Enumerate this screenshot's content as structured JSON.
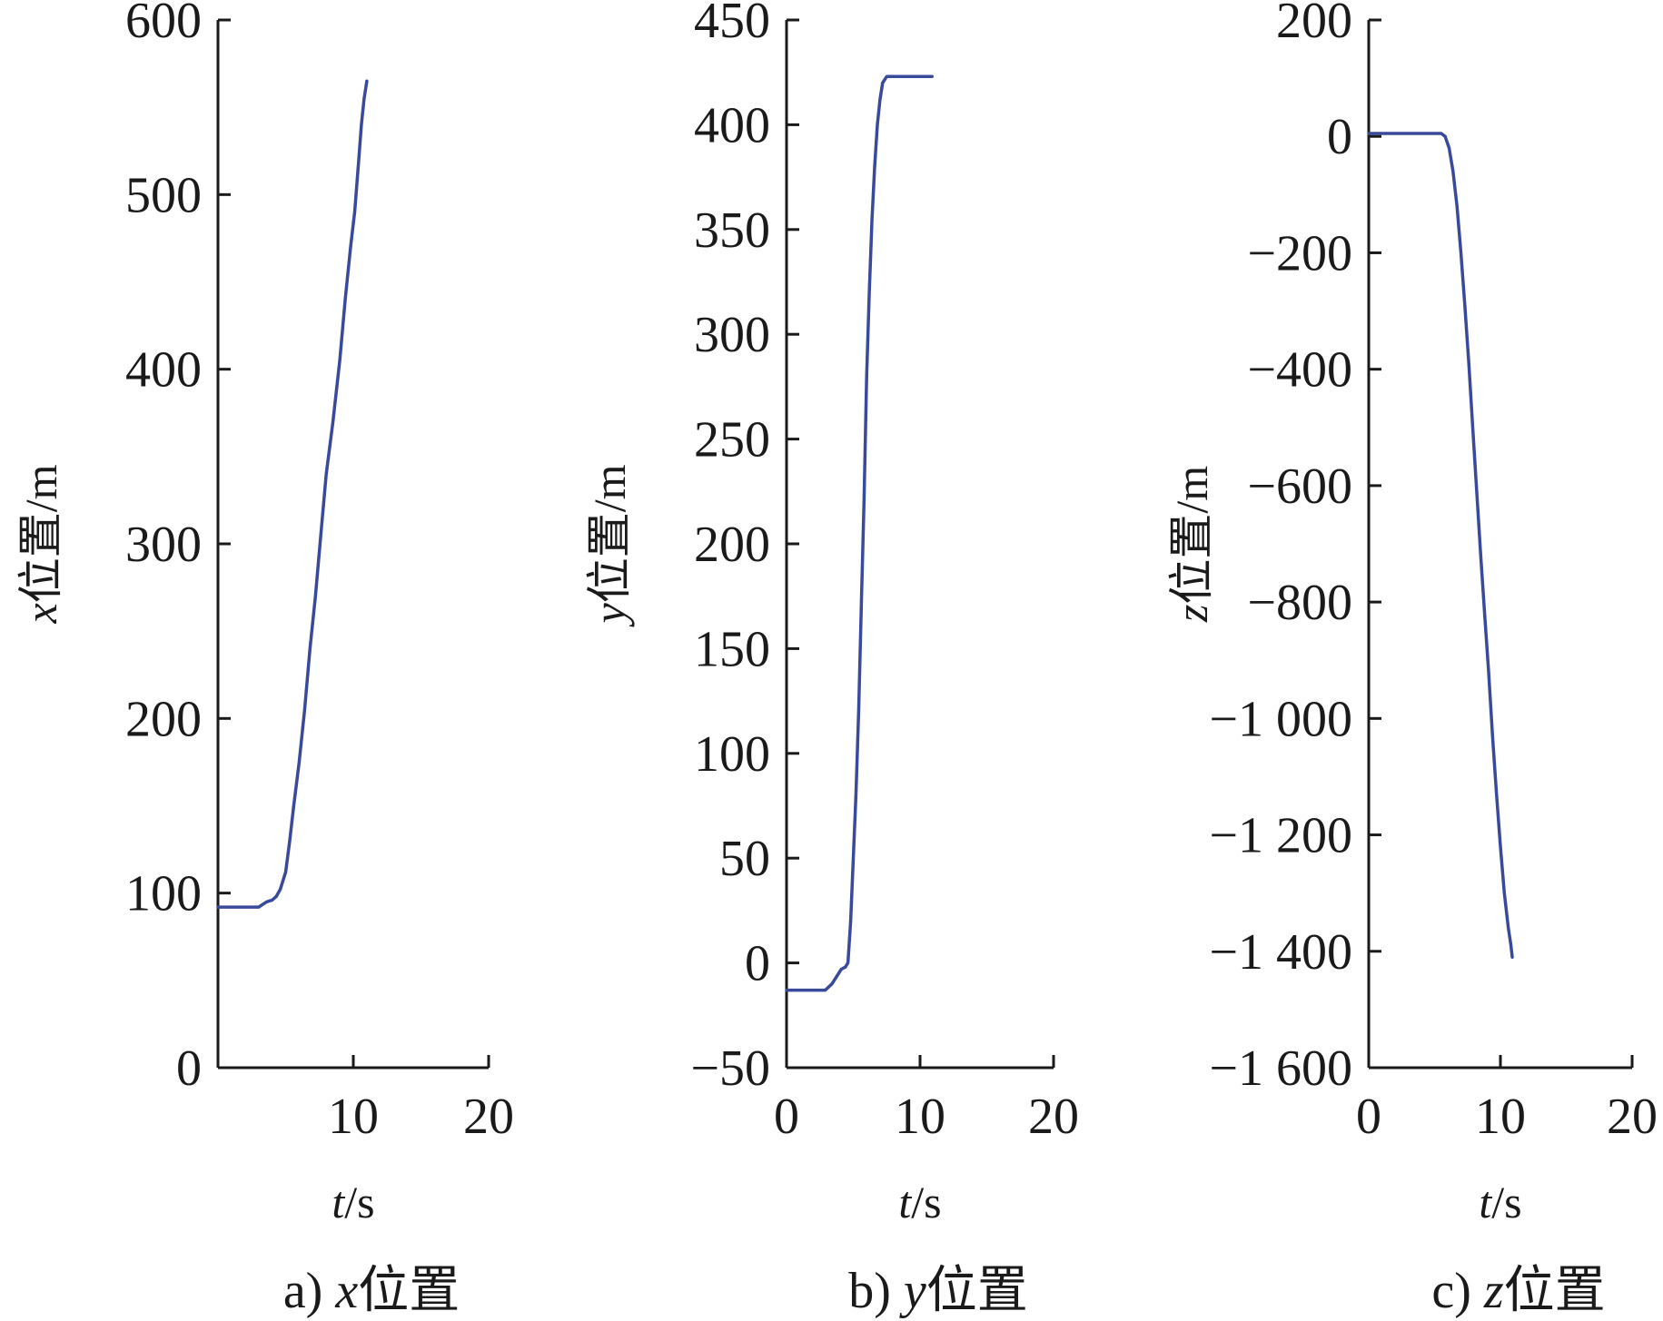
{
  "colors": {
    "series": "#3a4a9a",
    "axis": "#1a1a1a"
  },
  "chart_data": [
    {
      "type": "line",
      "caption_prefix": "a) ",
      "caption_var": "x",
      "caption_suffix": "位置",
      "ylabel_var": "x",
      "ylabel_text": "位置/m",
      "xlabel_var": "t",
      "xlabel_text": "/s",
      "xlim": [
        0,
        20
      ],
      "ylim": [
        0,
        600
      ],
      "xticks": [
        0,
        10,
        20
      ],
      "xtick_labels": [
        "",
        "10",
        "20"
      ],
      "yticks": [
        0,
        100,
        200,
        300,
        400,
        500,
        600
      ],
      "ytick_labels": [
        "0",
        "100",
        "200",
        "300",
        "400",
        "500",
        "600"
      ],
      "grid": false,
      "series": [
        {
          "x": [
            0,
            1,
            2,
            3,
            3.6,
            4,
            4.3,
            4.6,
            5,
            5.3,
            5.6,
            6,
            6.4,
            6.8,
            7.2,
            7.6,
            8,
            8.5,
            9,
            9.4,
            9.8,
            10.1,
            10.4,
            10.6,
            10.8,
            11
          ],
          "y": [
            92,
            92,
            92,
            92,
            95,
            96,
            98,
            102,
            112,
            130,
            150,
            175,
            205,
            240,
            270,
            305,
            340,
            370,
            405,
            440,
            470,
            490,
            520,
            540,
            555,
            565
          ]
        }
      ]
    },
    {
      "type": "line",
      "caption_prefix": "b) ",
      "caption_var": "y",
      "caption_suffix": "位置",
      "ylabel_var": "y",
      "ylabel_text": "位置/m",
      "xlabel_var": "t",
      "xlabel_text": "/s",
      "xlim": [
        0,
        20
      ],
      "ylim": [
        -50,
        450
      ],
      "xticks": [
        0,
        10,
        20
      ],
      "xtick_labels": [
        "0",
        "10",
        "20"
      ],
      "yticks": [
        -50,
        0,
        50,
        100,
        150,
        200,
        250,
        300,
        350,
        400,
        450
      ],
      "ytick_labels": [
        "−50",
        "0",
        "50",
        "100",
        "150",
        "200",
        "250",
        "300",
        "350",
        "400",
        "450"
      ],
      "grid": false,
      "series": [
        {
          "x": [
            0,
            1,
            2,
            2.9,
            3.4,
            3.8,
            4.1,
            4.4,
            4.6,
            4.8,
            5.0,
            5.2,
            5.4,
            5.6,
            5.8,
            6.0,
            6.2,
            6.4,
            6.6,
            6.8,
            7.0,
            7.2,
            7.5,
            8,
            9,
            10,
            10.9
          ],
          "y": [
            -13,
            -13,
            -13,
            -13,
            -10,
            -6,
            -3,
            -2,
            0,
            20,
            50,
            80,
            120,
            170,
            220,
            280,
            320,
            355,
            380,
            400,
            412,
            420,
            423,
            423,
            423,
            423,
            423
          ]
        }
      ]
    },
    {
      "type": "line",
      "caption_prefix": "c) ",
      "caption_var": "z",
      "caption_suffix": "位置",
      "ylabel_var": "z",
      "ylabel_text": "位置/m",
      "xlabel_var": "t",
      "xlabel_text": "/s",
      "xlim": [
        0,
        20
      ],
      "ylim": [
        -1600,
        200
      ],
      "xticks": [
        0,
        10,
        20
      ],
      "xtick_labels": [
        "0",
        "10",
        "20"
      ],
      "yticks": [
        -1600,
        -1400,
        -1200,
        -1000,
        -800,
        -600,
        -400,
        -200,
        0,
        200
      ],
      "ytick_labels": [
        "−1 600",
        "−1 400",
        "−1 200",
        "−1 000",
        "−800",
        "−600",
        "−400",
        "−200",
        "0",
        "200"
      ],
      "grid": false,
      "series": [
        {
          "x": [
            0,
            1,
            2,
            3,
            4,
            5,
            5.5,
            5.8,
            6.1,
            6.4,
            6.7,
            7.0,
            7.3,
            7.6,
            7.9,
            8.2,
            8.5,
            8.8,
            9.1,
            9.4,
            9.7,
            10.0,
            10.3,
            10.6,
            10.8,
            10.9
          ],
          "y": [
            5,
            5,
            5,
            5,
            5,
            5,
            5,
            0,
            -20,
            -60,
            -120,
            -200,
            -290,
            -390,
            -500,
            -610,
            -720,
            -820,
            -920,
            -1030,
            -1130,
            -1220,
            -1300,
            -1360,
            -1390,
            -1410
          ]
        }
      ]
    }
  ]
}
